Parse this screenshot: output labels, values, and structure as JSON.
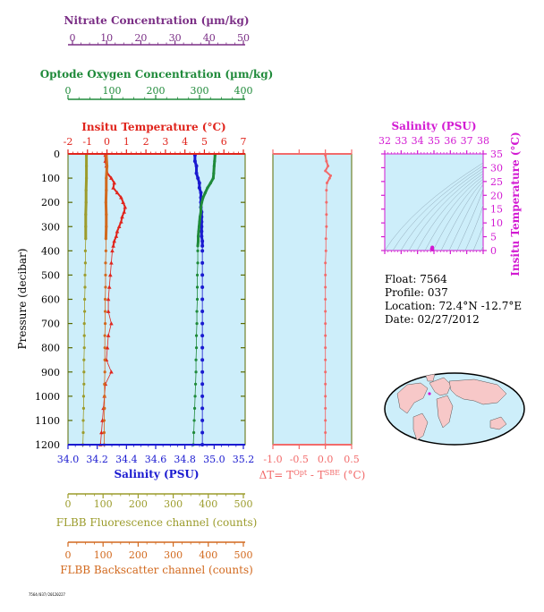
{
  "colors": {
    "nitrate": "#7b2f86",
    "oxygen": "#1f8a3a",
    "temperature": "#e0241c",
    "salinity": "#1a1ad0",
    "salinity_top": "#d21ad2",
    "fluorescence": "#9c9c2c",
    "backscatter": "#d2691e",
    "delta_t": "#f26b6b",
    "plot_bg": "#cdeefa",
    "axis_dark": "#5a6a00"
  },
  "axes": {
    "nitrate": {
      "label": "Nitrate Concentration (µm/kg)",
      "ticks": [
        "0",
        "10",
        "20",
        "30",
        "40",
        "50"
      ]
    },
    "oxygen": {
      "label": "Optode Oxygen Concentration (µm/kg)",
      "ticks": [
        "0",
        "100",
        "200",
        "300",
        "400"
      ]
    },
    "temperature": {
      "label": "Insitu Temperature (°C)",
      "ticks": [
        "-2",
        "-1",
        "0",
        "1",
        "2",
        "3",
        "4",
        "5",
        "6",
        "7"
      ]
    },
    "salinity": {
      "label": "Salinity (PSU)",
      "ticks": [
        "34.0",
        "34.2",
        "34.4",
        "34.6",
        "34.8",
        "35.0",
        "35.2"
      ]
    },
    "pressure": {
      "label": "Pressure (decibar)",
      "ticks": [
        "0",
        "100",
        "200",
        "300",
        "400",
        "500",
        "600",
        "700",
        "800",
        "900",
        "1000",
        "1100",
        "1200"
      ]
    },
    "fluorescence": {
      "label": "FLBB Fluorescence channel (counts)",
      "ticks": [
        "0",
        "100",
        "200",
        "300",
        "400",
        "500"
      ]
    },
    "backscatter": {
      "label": "FLBB Backscatter channel (counts)",
      "ticks": [
        "0",
        "100",
        "200",
        "300",
        "400",
        "500"
      ]
    },
    "delta_t": {
      "label_main": "ΔT= T",
      "sup1": "Opt",
      "label_mid": " - T",
      "sup2": "SBE",
      "label_end": " (°C)",
      "ticks": [
        "-1.0",
        "-0.5",
        "0.0",
        "0.5"
      ]
    },
    "ts_salinity": {
      "label": "Salinity (PSU)",
      "ticks": [
        "32",
        "33",
        "34",
        "35",
        "36",
        "37",
        "38"
      ]
    },
    "ts_temperature": {
      "label": "Insitu Temperature (°C)",
      "ticks": [
        "0",
        "5",
        "10",
        "15",
        "20",
        "25",
        "30",
        "35"
      ]
    }
  },
  "info": {
    "float": "Float:  7564",
    "profile": "Profile:  037",
    "location": "Location:  72.4°N  -12.7°E",
    "date": "Date:  02/27/2012"
  },
  "footer_code": "7564/037/20120227",
  "chart_data": [
    {
      "type": "line",
      "title": "",
      "ylabel": "Pressure (decibar)",
      "ylim": [
        1200,
        0
      ],
      "series": [
        {
          "name": "Insitu Temperature (°C)",
          "xlim": [
            -2,
            7
          ],
          "y": [
            5,
            30,
            50,
            80,
            100,
            120,
            140,
            160,
            180,
            200,
            220,
            240,
            260,
            280,
            300,
            320,
            340,
            360,
            380,
            400,
            450,
            500,
            550,
            600,
            650,
            700,
            750,
            800,
            850,
            900,
            950,
            1000,
            1050,
            1100,
            1150,
            1200
          ],
          "x": [
            -0.1,
            -0.1,
            -0.05,
            0.0,
            0.2,
            0.35,
            0.3,
            0.5,
            0.7,
            0.8,
            0.9,
            0.85,
            0.75,
            0.7,
            0.6,
            0.5,
            0.45,
            0.35,
            0.3,
            0.25,
            0.2,
            0.15,
            0.1,
            0.05,
            0.05,
            0.2,
            0.05,
            0.0,
            -0.05,
            0.2,
            -0.1,
            -0.15,
            -0.2,
            -0.25,
            -0.3,
            -0.35
          ]
        },
        {
          "name": "Salinity (PSU)",
          "xlim": [
            34.0,
            35.2
          ],
          "y": [
            5,
            30,
            50,
            80,
            100,
            120,
            140,
            160,
            180,
            200,
            220,
            240,
            260,
            280,
            300,
            320,
            340,
            360,
            380,
            400,
            450,
            500,
            550,
            600,
            650,
            700,
            750,
            800,
            850,
            900,
            950,
            1000,
            1050,
            1100,
            1150,
            1200
          ],
          "x": [
            34.86,
            34.86,
            34.87,
            34.87,
            34.88,
            34.89,
            34.89,
            34.9,
            34.9,
            34.9,
            34.9,
            34.905,
            34.905,
            34.905,
            34.905,
            34.905,
            34.905,
            34.91,
            34.91,
            34.91,
            34.91,
            34.91,
            34.91,
            34.91,
            34.91,
            34.91,
            34.91,
            34.91,
            34.91,
            34.91,
            34.91,
            34.91,
            34.91,
            34.91,
            34.91,
            34.91
          ]
        },
        {
          "name": "Optode Oxygen Concentration (µm/kg)",
          "xlim": [
            0,
            400
          ],
          "y": [
            5,
            30,
            50,
            80,
            100,
            120,
            140,
            160,
            180,
            200,
            220,
            240,
            260,
            280,
            300,
            320,
            340,
            360,
            380,
            400,
            450,
            500,
            550,
            600,
            650,
            700,
            750,
            800,
            850,
            900,
            950,
            1000,
            1050,
            1100,
            1150,
            1200
          ],
          "x": [
            332,
            331,
            330,
            329,
            328,
            322,
            315,
            310,
            305,
            302,
            300,
            300,
            298,
            297,
            296,
            295,
            294,
            294,
            293,
            293,
            293,
            292,
            292,
            292,
            291,
            291,
            290,
            290,
            289,
            289,
            288,
            287,
            286,
            285,
            284,
            283
          ]
        },
        {
          "name": "Nitrate Concentration (µm/kg)",
          "xlim": [
            0,
            50
          ],
          "y": [],
          "x": []
        },
        {
          "name": "FLBB Fluorescence channel (counts)",
          "xlim": [
            0,
            500
          ],
          "y": [
            5,
            50,
            100,
            150,
            200,
            250,
            300,
            350,
            400,
            450,
            500,
            550,
            600,
            650,
            700,
            750,
            800,
            850,
            900,
            950,
            1000,
            1050,
            1100,
            1150,
            1200
          ],
          "x": [
            52,
            52,
            52,
            51,
            51,
            50,
            50,
            50,
            49,
            49,
            48,
            48,
            47,
            47,
            46,
            46,
            46,
            45,
            45,
            45,
            44,
            44,
            43,
            43,
            42
          ]
        },
        {
          "name": "FLBB Backscatter channel (counts)",
          "xlim": [
            0,
            500
          ],
          "y": [
            5,
            50,
            100,
            150,
            200,
            250,
            300,
            350,
            400,
            450,
            500,
            550,
            600,
            650,
            700,
            750,
            800,
            850,
            900,
            950,
            1000,
            1050,
            1100,
            1150,
            1200
          ],
          "x": [
            108,
            110,
            108,
            108,
            107,
            108,
            108,
            107,
            107,
            106,
            106,
            106,
            105,
            105,
            105,
            104,
            104,
            104,
            104,
            103,
            103,
            103,
            102,
            102,
            102
          ]
        }
      ]
    },
    {
      "type": "line",
      "title": "",
      "xlabel": "ΔT= TOpt - TSBE (°C)",
      "ylim": [
        1200,
        0
      ],
      "series": [
        {
          "name": "ΔT",
          "xlim": [
            -1.0,
            0.5
          ],
          "y": [
            5,
            30,
            50,
            70,
            90,
            100,
            120,
            150,
            200,
            250,
            300,
            350,
            400,
            450,
            500,
            550,
            600,
            650,
            700,
            750,
            800,
            850,
            900,
            950,
            1000,
            1050,
            1100,
            1150,
            1200
          ],
          "x": [
            0.0,
            0.02,
            0.05,
            0.0,
            0.1,
            0.08,
            0.03,
            0.02,
            0.02,
            0.02,
            0.02,
            0.01,
            0.01,
            0.0,
            0.0,
            0.0,
            0.0,
            0.0,
            0.0,
            0.0,
            0.0,
            0.0,
            0.0,
            0.0,
            0.0,
            0.0,
            0.0,
            0.0,
            0.0
          ]
        }
      ]
    },
    {
      "type": "scatter",
      "title": "",
      "xlabel": "Salinity (PSU)",
      "ylabel": "Insitu Temperature (°C)",
      "xlim": [
        32,
        38
      ],
      "ylim": [
        0,
        35
      ],
      "series": [
        {
          "name": "T-S",
          "x": [
            34.87,
            34.9,
            34.91
          ],
          "y": [
            0.3,
            0.8,
            -0.2
          ]
        }
      ]
    }
  ]
}
